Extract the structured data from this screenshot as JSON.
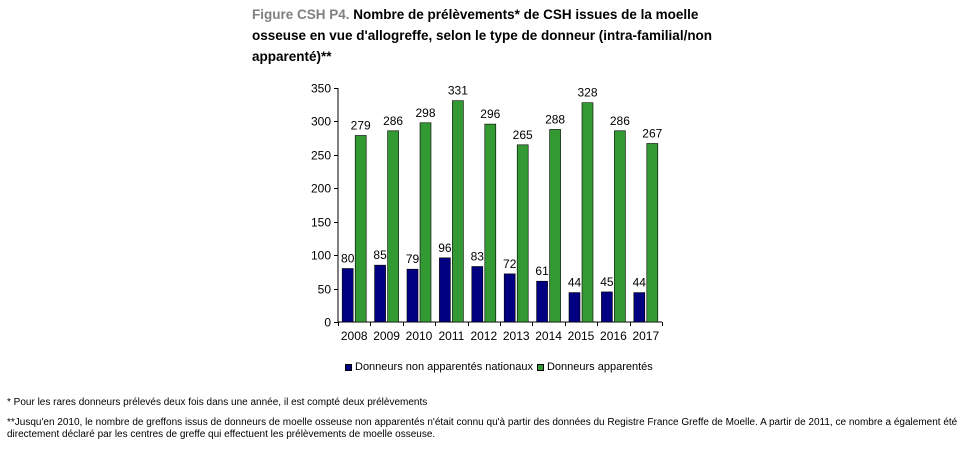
{
  "title": {
    "lead": "Figure CSH P4.",
    "text": "Nombre de prélèvements* de CSH issues de la moelle osseuse en vue d'allogreffe, selon le type de donneur (intra-familial/non apparenté)**"
  },
  "chart_data": {
    "type": "bar",
    "categories": [
      "2008",
      "2009",
      "2010",
      "2011",
      "2012",
      "2013",
      "2014",
      "2015",
      "2016",
      "2017"
    ],
    "series": [
      {
        "name": "Donneurs non apparentés nationaux",
        "color": "#000080",
        "values": [
          80,
          85,
          79,
          96,
          83,
          72,
          61,
          44,
          45,
          44
        ]
      },
      {
        "name": "Donneurs apparentés",
        "color": "#339933",
        "values": [
          279,
          286,
          298,
          331,
          296,
          265,
          288,
          328,
          286,
          267
        ]
      }
    ],
    "ylim": [
      0,
      350
    ],
    "yticks": [
      0,
      50,
      100,
      150,
      200,
      250,
      300,
      350
    ],
    "legend": "bottom",
    "grid": false
  },
  "notes": [
    "* Pour les rares donneurs prélevés deux fois dans une année, il est compté deux prélèvements",
    "**Jusqu'en 2010, le nombre de greffons issus de donneurs de moelle osseuse non apparentés n'était connu qu'à partir des données du Registre France Greffe de Moelle. A partir de 2011, ce nombre a également été directement déclaré par les centres de greffe qui effectuent les prélèvements de moelle osseuse."
  ]
}
